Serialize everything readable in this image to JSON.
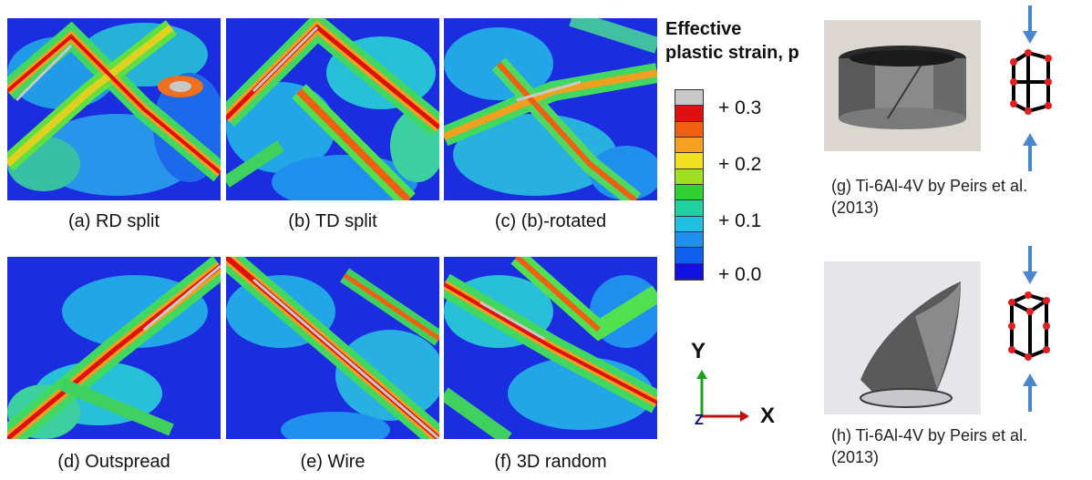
{
  "panels": [
    {
      "id": "a",
      "caption": "(a) RD split"
    },
    {
      "id": "b",
      "caption": "(b) TD split"
    },
    {
      "id": "c",
      "caption": "(c) (b)-rotated"
    },
    {
      "id": "d",
      "caption": "(d) Outspread"
    },
    {
      "id": "e",
      "caption": "(e) Wire"
    },
    {
      "id": "f",
      "caption": "(f) 3D random"
    }
  ],
  "legend": {
    "title_line1": "Effective",
    "title_line2": "plastic strain, p",
    "ticks": [
      "+ 0.3",
      "+ 0.2",
      "+ 0.1",
      "+ 0.0"
    ],
    "colors": [
      "#c8c8c8",
      "#e01010",
      "#f06010",
      "#f5a020",
      "#f0e020",
      "#a0e020",
      "#30d030",
      "#20d0a0",
      "#20c0e0",
      "#2090f0",
      "#1060f0",
      "#1010e0"
    ]
  },
  "axes": {
    "y_label": "Y",
    "x_label": "X",
    "z_label": "Z"
  },
  "photos": [
    {
      "id": "g",
      "caption_line1": "(g) Ti-6Al-4V by Peirs et al.",
      "caption_line2": "(2013)"
    },
    {
      "id": "h",
      "caption_line1": "(h) Ti-6Al-4V by Peirs et al.",
      "caption_line2": "(2013)"
    }
  ]
}
